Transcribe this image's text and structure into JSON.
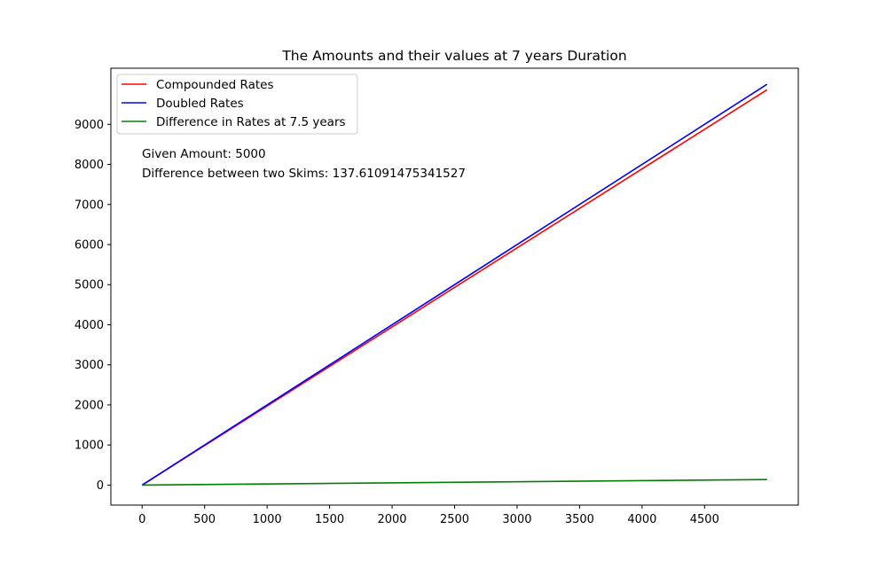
{
  "chart_data": {
    "type": "line",
    "title": "The Amounts and their values at 7 years Duration",
    "xlabel": "",
    "ylabel": "",
    "xlim": [
      -250,
      5250
    ],
    "ylim": [
      -500,
      10400
    ],
    "xticks": [
      0,
      500,
      1000,
      1500,
      2000,
      2500,
      3000,
      3500,
      4000,
      4500
    ],
    "yticks": [
      0,
      1000,
      2000,
      3000,
      4000,
      5000,
      6000,
      7000,
      8000,
      9000
    ],
    "grid": false,
    "legend_position": "top-left",
    "series": [
      {
        "name": "Compounded Rates",
        "color": "#ff0000",
        "x": [
          0,
          5000
        ],
        "y": [
          0,
          9862.39
        ]
      },
      {
        "name": "Doubled Rates",
        "color": "#0000ff",
        "x": [
          0,
          5000
        ],
        "y": [
          0,
          10000
        ]
      },
      {
        "name": "Difference in Rates at 7.5 years",
        "color": "#008000",
        "x": [
          0,
          5000
        ],
        "y": [
          0,
          137.61
        ]
      }
    ],
    "annotations": [
      "Given Amount: 5000",
      "Difference between two Skims: 137.61091475341527"
    ]
  }
}
